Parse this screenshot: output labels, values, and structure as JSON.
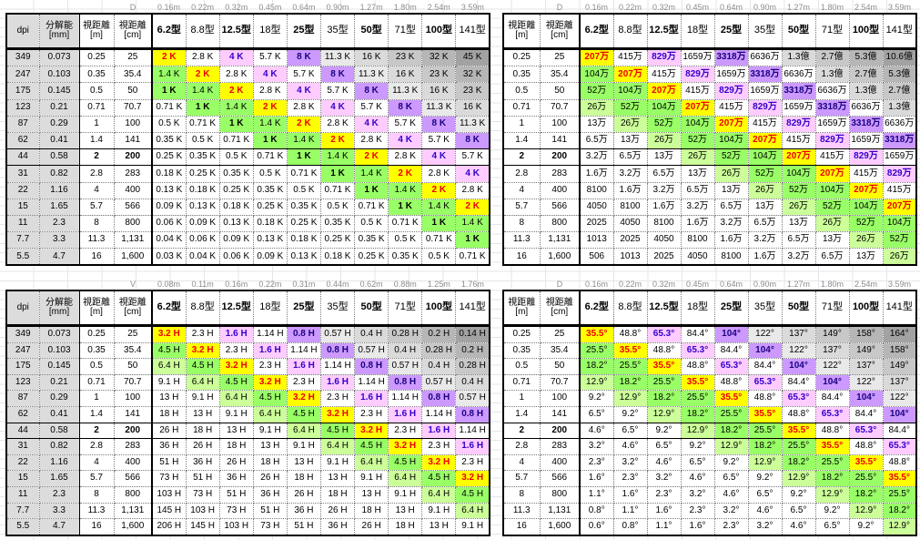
{
  "sheet": {
    "gridline_color": "#E3E6EA",
    "accent_colors": {
      "match_yellow": "#FFFF00",
      "near_green": "#99FF66",
      "light_green": "#CCFF99",
      "uhd4k_pink": "#FFCCFF",
      "uhd8k_purple": "#CC99FF",
      "highlight_navy": "#000080"
    }
  },
  "styles": {
    "y": {
      "bg": "#FFFF00",
      "fg": "#EE0000",
      "bold": true
    },
    "g1": {
      "bg": "#99FF66"
    },
    "g1b": {
      "bg": "#99FF66",
      "bold": true
    },
    "g2": {
      "bg": "#CCFF99"
    },
    "pk": {
      "bg": "#FFCCFF",
      "fg": "#3300CC",
      "bold": true
    },
    "pu": {
      "bg": "#CC99FF",
      "fg": "#1A0080",
      "bold": true
    },
    "gy1": {
      "bg": "#E9E9E9"
    },
    "gy2": {
      "bg": "#DADADA"
    },
    "gy3": {
      "bg": "#C8C8C8"
    },
    "gy4": {
      "bg": "#B6B6B6"
    },
    "gy5": {
      "bg": "#A2A2A2"
    }
  },
  "tables": [
    {
      "name": "resolution-k-table",
      "corner_label": "D",
      "distances": [
        "0.16m",
        "0.22m",
        "0.32m",
        "0.45m",
        "0.64m",
        "0.90m",
        "1.27m",
        "1.80m",
        "2.54m",
        "3.59m"
      ],
      "size_headers": [
        "6.2型",
        "8.8型",
        "12.5型",
        "18型",
        "25型",
        "35型",
        "50型",
        "71型",
        "100型",
        "141型"
      ],
      "left_columns": [
        {
          "header": "dpi",
          "values": [
            "349",
            "247",
            "175",
            "123",
            "87",
            "62",
            "44",
            "31",
            "22",
            "15",
            "11",
            "7.7",
            "5.5"
          ]
        },
        {
          "header": "分解能\n[mm]",
          "values": [
            "0.073",
            "0.103",
            "0.145",
            "0.21",
            "0.29",
            "0.41",
            "0.58",
            "0.82",
            "1.16",
            "1.65",
            "2.3",
            "3.3",
            "4.7"
          ]
        },
        {
          "header": "視距離\n[m]",
          "values": [
            "0.25",
            "0.35",
            "0.5",
            "0.71",
            "1",
            "1.4",
            "2",
            "2.8",
            "4",
            "5.7",
            "8",
            "11.3",
            "16"
          ]
        },
        {
          "header": "視距離\n[cm]",
          "values": [
            "25",
            "35.4",
            "50",
            "70.7",
            "100",
            "141",
            "200",
            "283",
            "400",
            "566",
            "800",
            "1,131",
            "1,600"
          ]
        }
      ],
      "gray_left_cols": [
        0,
        1
      ],
      "navy_cols": [
        2,
        3
      ],
      "highlight_row_index": 6,
      "value_style_map": {
        "2 K": "y",
        "1.4 K": "g1",
        "1 K": "g1b",
        "4 K": "pk",
        "8 K": "pu",
        "11.3 K": "gy1",
        "16 K": "gy2",
        "23 K": "gy3",
        "32 K": "gy4",
        "45 K": "gy5"
      },
      "rows": [
        [
          "2 K",
          "2.8 K",
          "4 K",
          "5.7 K",
          "8 K",
          "11.3 K",
          "16 K",
          "23 K",
          "32 K",
          "45 K"
        ],
        [
          "1.4 K",
          "2 K",
          "2.8 K",
          "4 K",
          "5.7 K",
          "8 K",
          "11.3 K",
          "16 K",
          "23 K",
          "32 K"
        ],
        [
          "1 K",
          "1.4 K",
          "2 K",
          "2.8 K",
          "4 K",
          "5.7 K",
          "8 K",
          "11.3 K",
          "16 K",
          "23 K"
        ],
        [
          "0.71 K",
          "1 K",
          "1.4 K",
          "2 K",
          "2.8 K",
          "4 K",
          "5.7 K",
          "8 K",
          "11.3 K",
          "16 K"
        ],
        [
          "0.5 K",
          "0.71 K",
          "1 K",
          "1.4 K",
          "2 K",
          "2.8 K",
          "4 K",
          "5.7 K",
          "8 K",
          "11.3 K"
        ],
        [
          "0.35 K",
          "0.5 K",
          "0.71 K",
          "1 K",
          "1.4 K",
          "2 K",
          "2.8 K",
          "4 K",
          "5.7 K",
          "8 K"
        ],
        [
          "0.25 K",
          "0.35 K",
          "0.5 K",
          "0.71 K",
          "1 K",
          "1.4 K",
          "2 K",
          "2.8 K",
          "4 K",
          "5.7 K"
        ],
        [
          "0.18 K",
          "0.25 K",
          "0.35 K",
          "0.5 K",
          "0.71 K",
          "1 K",
          "1.4 K",
          "2 K",
          "2.8 K",
          "4 K"
        ],
        [
          "0.13 K",
          "0.18 K",
          "0.25 K",
          "0.35 K",
          "0.5 K",
          "0.71 K",
          "1 K",
          "1.4 K",
          "2 K",
          "2.8 K"
        ],
        [
          "0.09 K",
          "0.13 K",
          "0.18 K",
          "0.25 K",
          "0.35 K",
          "0.5 K",
          "0.71 K",
          "1 K",
          "1.4 K",
          "2 K"
        ],
        [
          "0.06 K",
          "0.09 K",
          "0.13 K",
          "0.18 K",
          "0.25 K",
          "0.35 K",
          "0.5 K",
          "0.71 K",
          "1 K",
          "1.4 K"
        ],
        [
          "0.04 K",
          "0.06 K",
          "0.09 K",
          "0.13 K",
          "0.18 K",
          "0.25 K",
          "0.35 K",
          "0.5 K",
          "0.71 K",
          "1 K"
        ],
        [
          "0.03 K",
          "0.04 K",
          "0.06 K",
          "0.09 K",
          "0.13 K",
          "0.18 K",
          "0.25 K",
          "0.35 K",
          "0.5 K",
          "0.71 K"
        ]
      ]
    },
    {
      "name": "pixel-count-table",
      "corner_label": "D",
      "distances": [
        "0.16m",
        "0.22m",
        "0.32m",
        "0.45m",
        "0.64m",
        "0.90m",
        "1.27m",
        "1.80m",
        "2.54m",
        "3.59m"
      ],
      "size_headers": [
        "6.2型",
        "8.8型",
        "12.5型",
        "18型",
        "25型",
        "35型",
        "50型",
        "71型",
        "100型",
        "141型"
      ],
      "left_columns": [
        {
          "header": "視距離\n[m]",
          "values": [
            "0.25",
            "0.35",
            "0.5",
            "0.71",
            "1",
            "1.4",
            "2",
            "2.8",
            "4",
            "5.7",
            "8",
            "11.3",
            "16"
          ]
        },
        {
          "header": "視距離\n[cm]",
          "values": [
            "25",
            "35.4",
            "50",
            "70.7",
            "100",
            "141",
            "200",
            "283",
            "400",
            "566",
            "800",
            "1,131",
            "1,600"
          ]
        }
      ],
      "gray_left_cols": [],
      "navy_cols": [
        0,
        1
      ],
      "highlight_row_index": 6,
      "value_style_map": {
        "207万": "y",
        "104万": "g1",
        "52万": "g1",
        "26万": "g2",
        "829万": "pk",
        "3318万": "pu",
        "1.3億": "gy2",
        "2.7億": "gy3",
        "5.3億": "gy4",
        "10.6億": "gy5"
      },
      "rows": [
        [
          "207万",
          "415万",
          "829万",
          "1659万",
          "3318万",
          "6636万",
          "1.3億",
          "2.7億",
          "5.3億",
          "10.6億"
        ],
        [
          "104万",
          "207万",
          "415万",
          "829万",
          "1659万",
          "3318万",
          "6636万",
          "1.3億",
          "2.7億",
          "5.3億"
        ],
        [
          "52万",
          "104万",
          "207万",
          "415万",
          "829万",
          "1659万",
          "3318万",
          "6636万",
          "1.3億",
          "2.7億"
        ],
        [
          "26万",
          "52万",
          "104万",
          "207万",
          "415万",
          "829万",
          "1659万",
          "3318万",
          "6636万",
          "1.3億"
        ],
        [
          "13万",
          "26万",
          "52万",
          "104万",
          "207万",
          "415万",
          "829万",
          "1659万",
          "3318万",
          "6636万"
        ],
        [
          "6.5万",
          "13万",
          "26万",
          "52万",
          "104万",
          "207万",
          "415万",
          "829万",
          "1659万",
          "3318万"
        ],
        [
          "3.2万",
          "6.5万",
          "13万",
          "26万",
          "52万",
          "104万",
          "207万",
          "415万",
          "829万",
          "1659万"
        ],
        [
          "1.6万",
          "3.2万",
          "6.5万",
          "13万",
          "26万",
          "52万",
          "104万",
          "207万",
          "415万",
          "829万"
        ],
        [
          "8100",
          "1.6万",
          "3.2万",
          "6.5万",
          "13万",
          "26万",
          "52万",
          "104万",
          "207万",
          "415万"
        ],
        [
          "4050",
          "8100",
          "1.6万",
          "3.2万",
          "6.5万",
          "13万",
          "26万",
          "52万",
          "104万",
          "207万"
        ],
        [
          "2025",
          "4050",
          "8100",
          "1.6万",
          "3.2万",
          "6.5万",
          "13万",
          "26万",
          "52万",
          "104万"
        ],
        [
          "1013",
          "2025",
          "4050",
          "8100",
          "1.6万",
          "3.2万",
          "6.5万",
          "13万",
          "26万",
          "52万"
        ],
        [
          "506",
          "1013",
          "2025",
          "4050",
          "8100",
          "1.6万",
          "3.2万",
          "6.5万",
          "13万",
          "26万"
        ]
      ]
    },
    {
      "name": "screen-height-table",
      "corner_label": "V",
      "distances": [
        "0.08m",
        "0.11m",
        "0.16m",
        "0.22m",
        "0.31m",
        "0.44m",
        "0.62m",
        "0.88m",
        "1.25m",
        "1.76m"
      ],
      "size_headers": [
        "6.2型",
        "8.8型",
        "12.5型",
        "18型",
        "25型",
        "35型",
        "50型",
        "71型",
        "100型",
        "141型"
      ],
      "left_columns": [
        {
          "header": "dpi",
          "values": [
            "349",
            "247",
            "175",
            "123",
            "87",
            "62",
            "44",
            "31",
            "22",
            "15",
            "11",
            "7.7",
            "5.5"
          ]
        },
        {
          "header": "分解能\n[mm]",
          "values": [
            "0.073",
            "0.103",
            "0.145",
            "0.21",
            "0.29",
            "0.41",
            "0.58",
            "0.82",
            "1.16",
            "1.65",
            "2.3",
            "3.3",
            "4.7"
          ]
        },
        {
          "header": "視距離\n[m]",
          "values": [
            "0.25",
            "0.35",
            "0.5",
            "0.71",
            "1",
            "1.4",
            "2",
            "2.8",
            "4",
            "5.7",
            "8",
            "11.3",
            "16"
          ]
        },
        {
          "header": "視距離\n[cm]",
          "values": [
            "25",
            "35.4",
            "50",
            "70.7",
            "100",
            "141",
            "200",
            "283",
            "400",
            "566",
            "800",
            "1,131",
            "1,600"
          ]
        }
      ],
      "gray_left_cols": [
        0,
        1
      ],
      "navy_cols": [
        2,
        3
      ],
      "highlight_row_index": 6,
      "value_style_map": {
        "3.2 H": "y",
        "4.5 H": "g1",
        "6.4 H": "g2",
        "1.6 H": "pk",
        "0.8 H": "pu",
        "0.57 H": "gy1",
        "0.4 H": "gy2",
        "0.28 H": "gy3",
        "0.2 H": "gy4",
        "0.14 H": "gy5"
      },
      "rows": [
        [
          "3.2 H",
          "2.3 H",
          "1.6 H",
          "1.14 H",
          "0.8 H",
          "0.57 H",
          "0.4 H",
          "0.28 H",
          "0.2 H",
          "0.14 H"
        ],
        [
          "4.5 H",
          "3.2 H",
          "2.3 H",
          "1.6 H",
          "1.14 H",
          "0.8 H",
          "0.57 H",
          "0.4 H",
          "0.28 H",
          "0.2 H"
        ],
        [
          "6.4 H",
          "4.5 H",
          "3.2 H",
          "2.3 H",
          "1.6 H",
          "1.14 H",
          "0.8 H",
          "0.57 H",
          "0.4 H",
          "0.28 H"
        ],
        [
          "9.1 H",
          "6.4 H",
          "4.5 H",
          "3.2 H",
          "2.3 H",
          "1.6 H",
          "1.14 H",
          "0.8 H",
          "0.57 H",
          "0.4 H"
        ],
        [
          "13 H",
          "9.1 H",
          "6.4 H",
          "4.5 H",
          "3.2 H",
          "2.3 H",
          "1.6 H",
          "1.14 H",
          "0.8 H",
          "0.57 H"
        ],
        [
          "18 H",
          "13 H",
          "9.1 H",
          "6.4 H",
          "4.5 H",
          "3.2 H",
          "2.3 H",
          "1.6 H",
          "1.14 H",
          "0.8 H"
        ],
        [
          "26 H",
          "18 H",
          "13 H",
          "9.1 H",
          "6.4 H",
          "4.5 H",
          "3.2 H",
          "2.3 H",
          "1.6 H",
          "1.14 H"
        ],
        [
          "36 H",
          "26 H",
          "18 H",
          "13 H",
          "9.1 H",
          "6.4 H",
          "4.5 H",
          "3.2 H",
          "2.3 H",
          "1.6 H"
        ],
        [
          "51 H",
          "36 H",
          "26 H",
          "18 H",
          "13 H",
          "9.1 H",
          "6.4 H",
          "4.5 H",
          "3.2 H",
          "2.3 H"
        ],
        [
          "73 H",
          "51 H",
          "36 H",
          "26 H",
          "18 H",
          "13 H",
          "9.1 H",
          "6.4 H",
          "4.5 H",
          "3.2 H"
        ],
        [
          "103 H",
          "73 H",
          "51 H",
          "36 H",
          "26 H",
          "18 H",
          "13 H",
          "9.1 H",
          "6.4 H",
          "4.5 H"
        ],
        [
          "145 H",
          "103 H",
          "73 H",
          "51 H",
          "36 H",
          "26 H",
          "18 H",
          "13 H",
          "9.1 H",
          "6.4 H"
        ],
        [
          "206 H",
          "145 H",
          "103 H",
          "73 H",
          "51 H",
          "36 H",
          "26 H",
          "18 H",
          "13 H",
          "9.1 H"
        ]
      ]
    },
    {
      "name": "viewing-angle-table",
      "corner_label": "D",
      "distances": [
        "0.16m",
        "0.22m",
        "0.32m",
        "0.45m",
        "0.64m",
        "0.90m",
        "1.27m",
        "1.80m",
        "2.54m",
        "3.59m"
      ],
      "size_headers": [
        "6.2型",
        "8.8型",
        "12.5型",
        "18型",
        "25型",
        "35型",
        "50型",
        "71型",
        "100型",
        "141型"
      ],
      "left_columns": [
        {
          "header": "視距離\n[m]",
          "values": [
            "0.25",
            "0.35",
            "0.5",
            "0.71",
            "1",
            "1.4",
            "2",
            "2.8",
            "4",
            "5.7",
            "8",
            "11.3",
            "16"
          ]
        },
        {
          "header": "視距離\n[cm]",
          "values": [
            "25",
            "35.4",
            "50",
            "70.7",
            "100",
            "141",
            "200",
            "283",
            "400",
            "566",
            "800",
            "1,131",
            "1,600"
          ]
        }
      ],
      "gray_left_cols": [],
      "navy_cols": [
        0,
        1
      ],
      "highlight_row_index": 6,
      "value_style_map": {
        "35.5°": "y",
        "25.5°": "g1",
        "18.2°": "g1",
        "12.9°": "g2",
        "65.3°": "pk",
        "104°": "pu",
        "122°": "gy1",
        "137°": "gy2",
        "149°": "gy3",
        "158°": "gy4",
        "164°": "gy5"
      },
      "rows": [
        [
          "35.5°",
          "48.8°",
          "65.3°",
          "84.4°",
          "104°",
          "122°",
          "137°",
          "149°",
          "158°",
          "164°"
        ],
        [
          "25.5°",
          "35.5°",
          "48.8°",
          "65.3°",
          "84.4°",
          "104°",
          "122°",
          "137°",
          "149°",
          "158°"
        ],
        [
          "18.2°",
          "25.5°",
          "35.5°",
          "48.8°",
          "65.3°",
          "84.4°",
          "104°",
          "122°",
          "137°",
          "149°"
        ],
        [
          "12.9°",
          "18.2°",
          "25.5°",
          "35.5°",
          "48.8°",
          "65.3°",
          "84.4°",
          "104°",
          "122°",
          "137°"
        ],
        [
          "9.2°",
          "12.9°",
          "18.2°",
          "25.5°",
          "35.5°",
          "48.8°",
          "65.3°",
          "84.4°",
          "104°",
          "122°"
        ],
        [
          "6.5°",
          "9.2°",
          "12.9°",
          "18.2°",
          "25.5°",
          "35.5°",
          "48.8°",
          "65.3°",
          "84.4°",
          "104°"
        ],
        [
          "4.6°",
          "6.5°",
          "9.2°",
          "12.9°",
          "18.2°",
          "25.5°",
          "35.5°",
          "48.8°",
          "65.3°",
          "84.4°"
        ],
        [
          "3.2°",
          "4.6°",
          "6.5°",
          "9.2°",
          "12.9°",
          "18.2°",
          "25.5°",
          "35.5°",
          "48.8°",
          "65.3°"
        ],
        [
          "2.3°",
          "3.2°",
          "4.6°",
          "6.5°",
          "9.2°",
          "12.9°",
          "18.2°",
          "25.5°",
          "35.5°",
          "48.8°"
        ],
        [
          "1.6°",
          "2.3°",
          "3.2°",
          "4.6°",
          "6.5°",
          "9.2°",
          "12.9°",
          "18.2°",
          "25.5°",
          "35.5°"
        ],
        [
          "1.1°",
          "1.6°",
          "2.3°",
          "3.2°",
          "4.6°",
          "6.5°",
          "9.2°",
          "12.9°",
          "18.2°",
          "25.5°"
        ],
        [
          "0.8°",
          "1.1°",
          "1.6°",
          "2.3°",
          "3.2°",
          "4.6°",
          "6.5°",
          "9.2°",
          "12.9°",
          "18.2°"
        ],
        [
          "0.6°",
          "0.8°",
          "1.1°",
          "1.6°",
          "2.3°",
          "3.2°",
          "4.6°",
          "6.5°",
          "9.2°",
          "12.9°"
        ]
      ]
    }
  ]
}
